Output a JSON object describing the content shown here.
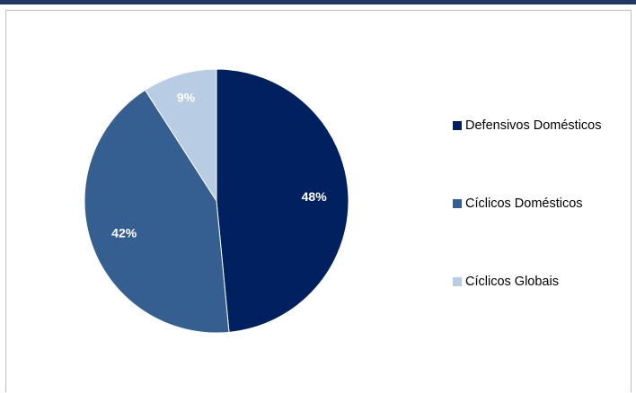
{
  "chart_data": {
    "type": "pie",
    "title": "",
    "slices": [
      {
        "label": "Defensivos Domésticos",
        "value": 48,
        "value_label": "48%",
        "color": "#002060"
      },
      {
        "label": "Cíclicos Domésticos",
        "value": 42,
        "value_label": "42%",
        "color": "#355f91"
      },
      {
        "label": "Cíclicos Globais",
        "value": 9,
        "value_label": "9%",
        "color": "#b8cce4"
      }
    ],
    "start_angle_deg": 0,
    "direction": "clockwise",
    "legend_position": "right",
    "data_label_color": "#ffffff"
  },
  "colors": {
    "top_bar": "#1f3864",
    "frame_border": "#bfbfbf"
  }
}
